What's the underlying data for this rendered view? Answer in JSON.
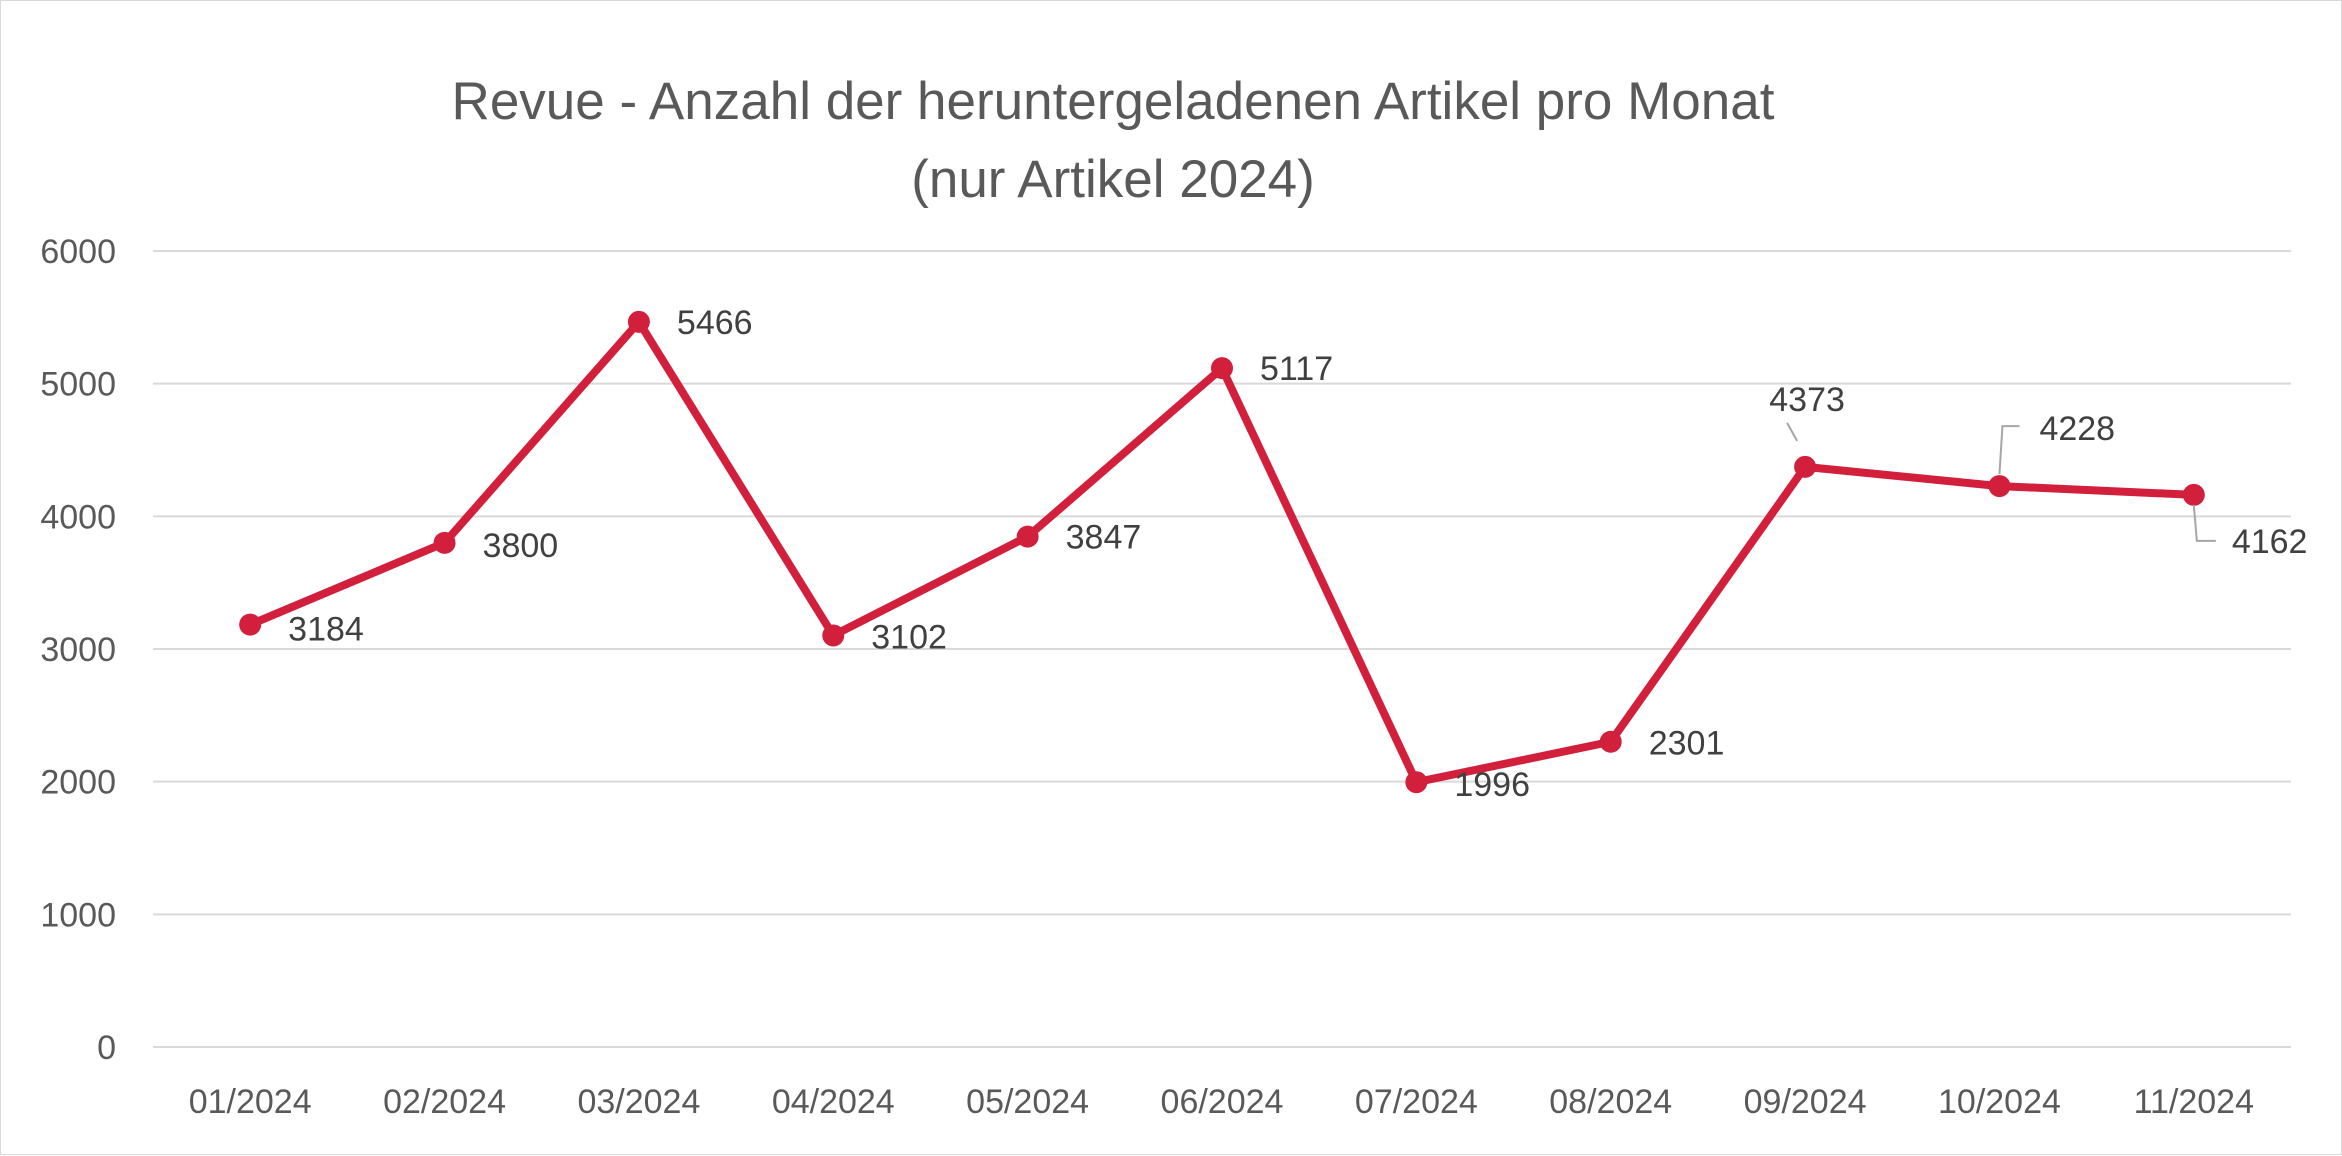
{
  "chart_data": {
    "type": "line",
    "title": "Revue - Anzahl der heruntergeladenen Artikel pro Monat",
    "subtitle": "(nur Artikel 2024)",
    "xlabel": "",
    "ylabel": "",
    "categories": [
      "01/2024",
      "02/2024",
      "03/2024",
      "04/2024",
      "05/2024",
      "06/2024",
      "07/2024",
      "08/2024",
      "09/2024",
      "10/2024",
      "11/2024"
    ],
    "values": [
      3184,
      3800,
      5466,
      3102,
      3847,
      5117,
      1996,
      2301,
      4373,
      4228,
      4162
    ],
    "ylim": [
      0,
      6000
    ],
    "yticks": [
      "0",
      "1000",
      "2000",
      "3000",
      "4000",
      "5000",
      "6000"
    ],
    "grid": true,
    "legend": "none",
    "data_labels": true,
    "colors": {
      "series": "#d21f3c"
    }
  }
}
